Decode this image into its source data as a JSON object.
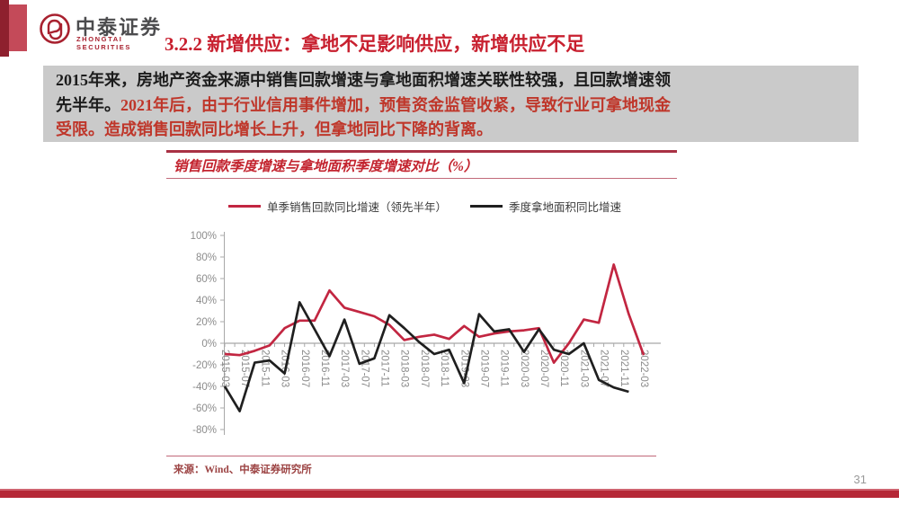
{
  "header": {
    "logo_cn": "中泰证券",
    "logo_en": "ZHONGTAI SECURITIES",
    "section_title": "3.2.2 新增供应：拿地不足影响供应，新增供应不足"
  },
  "summary": {
    "lines": [
      {
        "black": "2015年来，房地产资金来源中销售回款增速与拿地面积增速关联性较强，且回款增速领",
        "red": ""
      },
      {
        "black": "先半年。",
        "red": "2021年后，由于行业信用事件增加，预售资金监管收紧，导致行业可拿地现金"
      },
      {
        "black": "",
        "red": "受限。造成销售回款同比增长上升，但拿地同比下降的背离。"
      }
    ]
  },
  "chart_card": {
    "title": "销售回款季度增速与拿地面积季度增速对比（%）",
    "source": "来源：Wind、中泰证券研究所"
  },
  "chart_data": {
    "type": "line",
    "title": "销售回款季度增速与拿地面积季度增速对比（%）",
    "categories": [
      "2015-03",
      "2015-06",
      "2015-09",
      "2015-12",
      "2016-03",
      "2016-06",
      "2016-09",
      "2016-12",
      "2017-03",
      "2017-06",
      "2017-09",
      "2017-12",
      "2018-03",
      "2018-06",
      "2018-09",
      "2018-12",
      "2019-03",
      "2019-06",
      "2019-09",
      "2019-12",
      "2020-03",
      "2020-06",
      "2020-09",
      "2020-12",
      "2021-03",
      "2021-06",
      "2021-09",
      "2021-12",
      "2022-03"
    ],
    "series": [
      {
        "name": "单季销售回款同比增速（领先半年）",
        "color": "#c22641",
        "values": [
          -10,
          -11,
          -7,
          -2,
          14,
          21,
          21,
          49,
          33,
          29,
          25,
          17,
          3,
          6,
          8,
          4,
          16,
          6,
          9,
          11,
          12,
          14,
          -18,
          0,
          22,
          19,
          73,
          27,
          -11
        ]
      },
      {
        "name": "季度拿地面积同比增速",
        "color": "#1f1f1f",
        "values": [
          -40,
          -63,
          -18,
          -16,
          -28,
          38,
          13,
          -12,
          22,
          -19,
          -14,
          26,
          14,
          1,
          -10,
          -6,
          -37,
          27,
          11,
          13,
          -8,
          13,
          -6,
          -10,
          0,
          -34,
          -41,
          -45,
          null
        ]
      }
    ],
    "x_tick_labels": [
      "2015-03",
      "2015-07",
      "2015-11",
      "2016-03",
      "2016-07",
      "2016-11",
      "2017-03",
      "2017-07",
      "2017-11",
      "2018-03",
      "2018-07",
      "2018-11",
      "2019-03",
      "2019-07",
      "2019-11",
      "2020-03",
      "2020-07",
      "2020-11",
      "2021-03",
      "2021-07",
      "2021-11",
      "2022-03"
    ],
    "y_ticks": [
      100,
      80,
      60,
      40,
      20,
      0,
      -20,
      -40,
      -60,
      -80
    ],
    "y_tick_suffix": "%",
    "ylim": [
      -80,
      100
    ],
    "xlabel": "",
    "ylabel": "",
    "legend_position": "top",
    "grid": "zero-line-only",
    "axis_color": "#a8a8a8",
    "tick_label_color": "#8c8c8c"
  },
  "footer": {
    "page_number": "31"
  }
}
